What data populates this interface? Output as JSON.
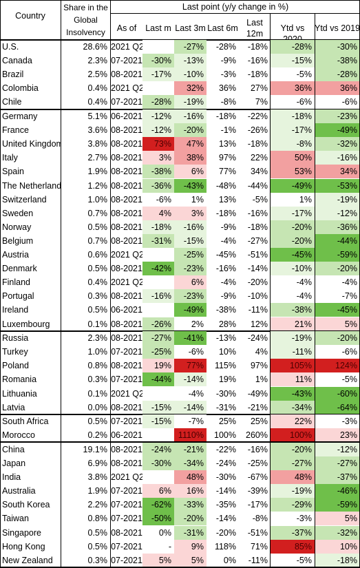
{
  "chart_data": {
    "type": "table",
    "header": {
      "country": "Country",
      "share": "Share in the Global Insolvency",
      "group": "Last point (y/y change in %)",
      "as_of": "As of",
      "last_m": "Last m",
      "last_3m": "Last 3m",
      "last_6m": "Last 6m",
      "last_12m": "Last 12m",
      "ytd_2020": "Ytd vs 2020",
      "ytd_2019": "Ytd vs 2019"
    },
    "colors": {
      "strong_green": "#6fbf4a",
      "light_green": "#c6e5b3",
      "pale_green": "#e6f4dd",
      "neutral": "#ffffff",
      "pale_red": "#fbd6d6",
      "light_red": "#f2a0a0",
      "strong_red": "#d21f1f"
    },
    "groups": [
      {
        "rows": [
          {
            "country": "U.S.",
            "share": "28.6%",
            "as_of": "2021 Q2",
            "m": "",
            "m3": "-27%",
            "m6": "-28%",
            "m12": "-18%",
            "y20": "-28%",
            "y19": "-30%"
          },
          {
            "country": "Canada",
            "share": "2.3%",
            "as_of": "07-2021",
            "m": "-30%",
            "m3": "-13%",
            "m6": "-9%",
            "m12": "-16%",
            "y20": "-15%",
            "y19": "-38%"
          },
          {
            "country": "Brazil",
            "share": "2.5%",
            "as_of": "08-2021",
            "m": "-17%",
            "m3": "-10%",
            "m6": "-3%",
            "m12": "-18%",
            "y20": "-5%",
            "y19": "-28%"
          },
          {
            "country": "Colombia",
            "share": "0.4%",
            "as_of": "2021 Q2",
            "m": "",
            "m3": "32%",
            "m6": "36%",
            "m12": "27%",
            "y20": "36%",
            "y19": "36%"
          },
          {
            "country": "Chile",
            "share": "0.4%",
            "as_of": "07-2021",
            "m": "-28%",
            "m3": "-19%",
            "m6": "-8%",
            "m12": "7%",
            "y20": "-6%",
            "y19": "-6%"
          }
        ]
      },
      {
        "rows": [
          {
            "country": "Germany",
            "share": "5.1%",
            "as_of": "06-2021",
            "m": "-12%",
            "m3": "-16%",
            "m6": "-18%",
            "m12": "-22%",
            "y20": "-18%",
            "y19": "-23%"
          },
          {
            "country": "France",
            "share": "3.6%",
            "as_of": "08-2021",
            "m": "-12%",
            "m3": "-20%",
            "m6": "-1%",
            "m12": "-26%",
            "y20": "-17%",
            "y19": "-49%"
          },
          {
            "country": "United Kingdom",
            "share": "3.8%",
            "as_of": "08-2021",
            "m": "73%",
            "m3": "47%",
            "m6": "13%",
            "m12": "-18%",
            "y20": "-8%",
            "y19": "-32%"
          },
          {
            "country": "Italy",
            "share": "2.7%",
            "as_of": "08-2021",
            "m": "3%",
            "m3": "38%",
            "m6": "97%",
            "m12": "22%",
            "y20": "50%",
            "y19": "-16%"
          },
          {
            "country": "Spain",
            "share": "1.9%",
            "as_of": "08-2021",
            "m": "-38%",
            "m3": "6%",
            "m6": "77%",
            "m12": "34%",
            "y20": "53%",
            "y19": "34%"
          },
          {
            "country": "The Netherlands",
            "share": "1.2%",
            "as_of": "08-2021",
            "m": "-36%",
            "m3": "-43%",
            "m6": "-48%",
            "m12": "-44%",
            "y20": "-49%",
            "y19": "-53%"
          },
          {
            "country": "Switzerland",
            "share": "1.0%",
            "as_of": "08-2021",
            "m": "-6%",
            "m3": "1%",
            "m6": "13%",
            "m12": "-5%",
            "y20": "1%",
            "y19": "-19%"
          },
          {
            "country": "Sweden",
            "share": "0.7%",
            "as_of": "08-2021",
            "m": "4%",
            "m3": "3%",
            "m6": "-18%",
            "m12": "-16%",
            "y20": "-17%",
            "y19": "-12%"
          },
          {
            "country": "Norway",
            "share": "0.5%",
            "as_of": "08-2021",
            "m": "-18%",
            "m3": "-16%",
            "m6": "-9%",
            "m12": "-18%",
            "y20": "-20%",
            "y19": "-36%"
          },
          {
            "country": "Belgium",
            "share": "0.7%",
            "as_of": "08-2021",
            "m": "-31%",
            "m3": "-15%",
            "m6": "-4%",
            "m12": "-27%",
            "y20": "-20%",
            "y19": "-44%"
          },
          {
            "country": "Austria",
            "share": "0.6%",
            "as_of": "2021 Q2",
            "m": "",
            "m3": "-25%",
            "m6": "-45%",
            "m12": "-51%",
            "y20": "-45%",
            "y19": "-59%"
          },
          {
            "country": "Denmark",
            "share": "0.5%",
            "as_of": "08-2021",
            "m": "-42%",
            "m3": "-23%",
            "m6": "-16%",
            "m12": "-14%",
            "y20": "-10%",
            "y19": "-20%"
          },
          {
            "country": "Finland",
            "share": "0.4%",
            "as_of": "2021 Q2",
            "m": "",
            "m3": "6%",
            "m6": "-4%",
            "m12": "-20%",
            "y20": "-4%",
            "y19": "-4%"
          },
          {
            "country": "Portugal",
            "share": "0.3%",
            "as_of": "08-2021",
            "m": "-16%",
            "m3": "-23%",
            "m6": "-9%",
            "m12": "-10%",
            "y20": "-4%",
            "y19": "-7%"
          },
          {
            "country": "Ireland",
            "share": "0.5%",
            "as_of": "06-2021",
            "m": "",
            "m3": "-49%",
            "m6": "-38%",
            "m12": "-11%",
            "y20": "-38%",
            "y19": "-45%"
          },
          {
            "country": "Luxembourg",
            "share": "0.1%",
            "as_of": "08-2021",
            "m": "-26%",
            "m3": "2%",
            "m6": "28%",
            "m12": "12%",
            "y20": "21%",
            "y19": "5%"
          }
        ]
      },
      {
        "rows": [
          {
            "country": "Russia",
            "share": "2.3%",
            "as_of": "08-2021",
            "m": "-27%",
            "m3": "-41%",
            "m6": "-13%",
            "m12": "-24%",
            "y20": "-19%",
            "y19": "-20%"
          },
          {
            "country": "Turkey",
            "share": "1.0%",
            "as_of": "07-2021",
            "m": "-25%",
            "m3": "-6%",
            "m6": "10%",
            "m12": "4%",
            "y20": "-11%",
            "y19": "-6%"
          },
          {
            "country": "Poland",
            "share": "0.8%",
            "as_of": "08-2021",
            "m": "19%",
            "m3": "77%",
            "m6": "115%",
            "m12": "97%",
            "y20": "105%",
            "y19": "124%"
          },
          {
            "country": "Romania",
            "share": "0.3%",
            "as_of": "07-2021",
            "m": "-44%",
            "m3": "-14%",
            "m6": "19%",
            "m12": "1%",
            "y20": "11%",
            "y19": "-5%"
          },
          {
            "country": "Lithuania",
            "share": "0.1%",
            "as_of": "2021 Q2",
            "m": "",
            "m3": "-4%",
            "m6": "-30%",
            "m12": "-49%",
            "y20": "-43%",
            "y19": "-60%"
          },
          {
            "country": "Latvia",
            "share": "0.0%",
            "as_of": "08-2021",
            "m": "-15%",
            "m3": "-14%",
            "m6": "-31%",
            "m12": "-21%",
            "y20": "-34%",
            "y19": "-64%"
          }
        ]
      },
      {
        "rows": [
          {
            "country": "South Africa",
            "share": "0.5%",
            "as_of": "07-2021",
            "m": "-15%",
            "m3": "-7%",
            "m6": "25%",
            "m12": "25%",
            "y20": "22%",
            "y19": "-3%"
          },
          {
            "country": "Morocco",
            "share": "0.2%",
            "as_of": "06-2021",
            "m": "",
            "m3": "1110%",
            "m6": "100%",
            "m12": "260%",
            "y20": "100%",
            "y19": "23%"
          }
        ]
      },
      {
        "rows": [
          {
            "country": "China",
            "share": "19.1%",
            "as_of": "08-2021",
            "m": "-24%",
            "m3": "-21%",
            "m6": "-22%",
            "m12": "-16%",
            "y20": "-20%",
            "y19": "-12%"
          },
          {
            "country": "Japan",
            "share": "6.9%",
            "as_of": "08-2021",
            "m": "-30%",
            "m3": "-34%",
            "m6": "-24%",
            "m12": "-25%",
            "y20": "-27%",
            "y19": "-27%"
          },
          {
            "country": "India",
            "share": "3.8%",
            "as_of": "2021 Q2",
            "m": "",
            "m3": "48%",
            "m6": "-30%",
            "m12": "-67%",
            "y20": "48%",
            "y19": "-37%"
          },
          {
            "country": "Australia",
            "share": "1.9%",
            "as_of": "07-2021",
            "m": "6%",
            "m3": "16%",
            "m6": "-14%",
            "m12": "-39%",
            "y20": "-19%",
            "y19": "-46%"
          },
          {
            "country": "South Korea",
            "share": "2.2%",
            "as_of": "07-2021",
            "m": "-62%",
            "m3": "-33%",
            "m6": "-35%",
            "m12": "-17%",
            "y20": "-29%",
            "y19": "-59%"
          },
          {
            "country": "Taiwan",
            "share": "0.8%",
            "as_of": "07-2021",
            "m": "-50%",
            "m3": "-20%",
            "m6": "-14%",
            "m12": "-8%",
            "y20": "-3%",
            "y19": "5%"
          },
          {
            "country": "Singapore",
            "share": "0.5%",
            "as_of": "08-2021",
            "m": "0%",
            "m3": "-31%",
            "m6": "-20%",
            "m12": "-51%",
            "y20": "-37%",
            "y19": "-32%"
          },
          {
            "country": "Hong Kong",
            "share": "0.5%",
            "as_of": "07-2021",
            "m": "-",
            "m3": "9%",
            "m6": "118%",
            "m12": "71%",
            "y20": "85%",
            "y19": "10%"
          },
          {
            "country": "New Zealand",
            "share": "0.3%",
            "as_of": "07-2021",
            "m": "5%",
            "m3": "5%",
            "m6": "0%",
            "m12": "-11%",
            "y20": "-5%",
            "y19": "-18%"
          }
        ]
      }
    ]
  }
}
